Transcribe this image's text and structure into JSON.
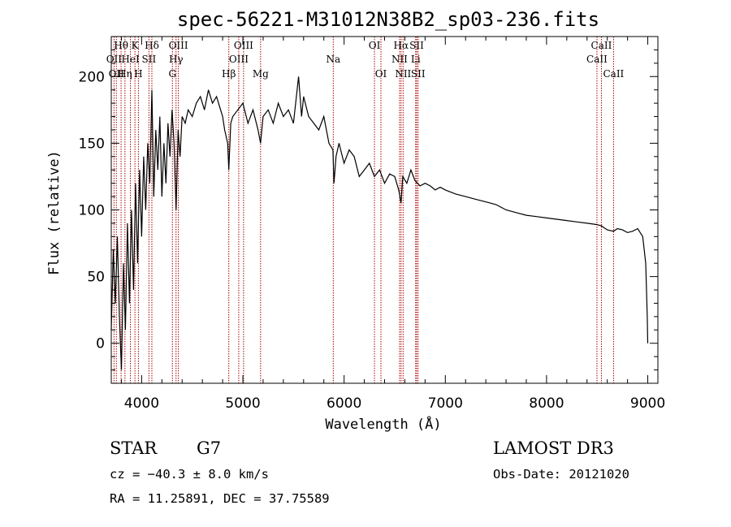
{
  "chart_data": {
    "type": "line",
    "title": "spec-56221-M31012N38B2_sp03-236.fits",
    "xlabel": "Wavelength (Å)",
    "ylabel": "Flux (relative)",
    "xlim": [
      3700,
      9100
    ],
    "ylim": [
      -30,
      230
    ],
    "xticks": [
      4000,
      5000,
      6000,
      7000,
      8000,
      9000
    ],
    "yticks": [
      0,
      50,
      100,
      150,
      200
    ],
    "series": [
      {
        "name": "spectrum",
        "x": [
          3700,
          3720,
          3740,
          3760,
          3780,
          3800,
          3820,
          3840,
          3860,
          3880,
          3900,
          3920,
          3940,
          3960,
          3980,
          4000,
          4020,
          4040,
          4060,
          4080,
          4101,
          4120,
          4140,
          4160,
          4180,
          4200,
          4220,
          4240,
          4260,
          4280,
          4300,
          4320,
          4340,
          4360,
          4380,
          4400,
          4430,
          4460,
          4500,
          4540,
          4580,
          4620,
          4660,
          4700,
          4740,
          4780,
          4800,
          4820,
          4850,
          4861,
          4880,
          4900,
          4950,
          5000,
          5050,
          5100,
          5150,
          5175,
          5200,
          5250,
          5300,
          5350,
          5400,
          5450,
          5500,
          5550,
          5580,
          5600,
          5650,
          5700,
          5750,
          5800,
          5850,
          5890,
          5900,
          5920,
          5950,
          6000,
          6050,
          6100,
          6150,
          6200,
          6250,
          6300,
          6350,
          6400,
          6450,
          6500,
          6540,
          6563,
          6580,
          6620,
          6660,
          6700,
          6750,
          6800,
          6850,
          6900,
          6950,
          7000,
          7100,
          7200,
          7300,
          7400,
          7500,
          7600,
          7700,
          7800,
          7900,
          8000,
          8100,
          8200,
          8300,
          8400,
          8500,
          8542,
          8600,
          8662,
          8700,
          8750,
          8800,
          8850,
          8900,
          8950,
          8980,
          8995,
          9000
        ],
        "values": [
          10,
          70,
          30,
          80,
          20,
          -20,
          60,
          10,
          90,
          30,
          100,
          40,
          120,
          60,
          130,
          80,
          140,
          100,
          150,
          120,
          190,
          110,
          160,
          130,
          170,
          110,
          150,
          120,
          165,
          140,
          175,
          150,
          100,
          160,
          140,
          170,
          165,
          175,
          170,
          180,
          185,
          175,
          190,
          180,
          185,
          175,
          170,
          160,
          150,
          130,
          165,
          170,
          175,
          180,
          165,
          175,
          160,
          150,
          170,
          175,
          165,
          180,
          170,
          175,
          165,
          200,
          170,
          185,
          170,
          165,
          160,
          170,
          150,
          145,
          120,
          140,
          150,
          135,
          145,
          140,
          125,
          130,
          135,
          125,
          130,
          120,
          127,
          125,
          115,
          105,
          125,
          120,
          130,
          122,
          118,
          120,
          118,
          115,
          117,
          115,
          112,
          110,
          108,
          106,
          104,
          100,
          98,
          96,
          95,
          94,
          93,
          92,
          91,
          90,
          89,
          88,
          85,
          84,
          86,
          85,
          83,
          84,
          86,
          80,
          60,
          20,
          0
        ]
      }
    ],
    "lines": [
      {
        "x": 3727,
        "label": "OII",
        "row": 1
      },
      {
        "x": 3750,
        "label": "OII",
        "row": 2
      },
      {
        "x": 3797,
        "label": "Hθ",
        "row": 0
      },
      {
        "x": 3835,
        "label": "Hη",
        "row": 2
      },
      {
        "x": 3889,
        "label": "HeI",
        "row": 1
      },
      {
        "x": 3934,
        "label": "K",
        "row": 0
      },
      {
        "x": 3968,
        "label": "H",
        "row": 2
      },
      {
        "x": 4072,
        "label": "SII",
        "row": 1
      },
      {
        "x": 4101,
        "label": "Hδ",
        "row": 0
      },
      {
        "x": 4304,
        "label": "G",
        "row": 2
      },
      {
        "x": 4340,
        "label": "Hγ",
        "row": 1
      },
      {
        "x": 4363,
        "label": "OIII",
        "row": 0
      },
      {
        "x": 4861,
        "label": "Hβ",
        "row": 2
      },
      {
        "x": 4959,
        "label": "OIII",
        "row": 1
      },
      {
        "x": 5007,
        "label": "OIII",
        "row": 0
      },
      {
        "x": 5175,
        "label": "Mg",
        "row": 2
      },
      {
        "x": 5893,
        "label": "Na",
        "row": 1
      },
      {
        "x": 6300,
        "label": "OI",
        "row": 0
      },
      {
        "x": 6364,
        "label": "OI",
        "row": 2
      },
      {
        "x": 6548,
        "label": "NII",
        "row": 1
      },
      {
        "x": 6563,
        "label": "Hα",
        "row": 0
      },
      {
        "x": 6583,
        "label": "NII",
        "row": 2
      },
      {
        "x": 6707,
        "label": "Li",
        "row": 1
      },
      {
        "x": 6717,
        "label": "SII",
        "row": 0
      },
      {
        "x": 6731,
        "label": "SII",
        "row": 2
      },
      {
        "x": 8498,
        "label": "CaII",
        "row": 1
      },
      {
        "x": 8542,
        "label": "CaII",
        "row": 0
      },
      {
        "x": 8662,
        "label": "CaII",
        "row": 2
      }
    ]
  },
  "info": {
    "class": "STAR",
    "subclass": "G7",
    "survey": "LAMOST DR3",
    "redshift": "cz = −40.3 ± 8.0 km/s",
    "obsdate": "Obs-Date: 20121020",
    "coords": "RA =  11.25891, DEC =  37.75589"
  },
  "colors": {
    "line_marker": "#aa0000",
    "spectrum": "#000000"
  }
}
